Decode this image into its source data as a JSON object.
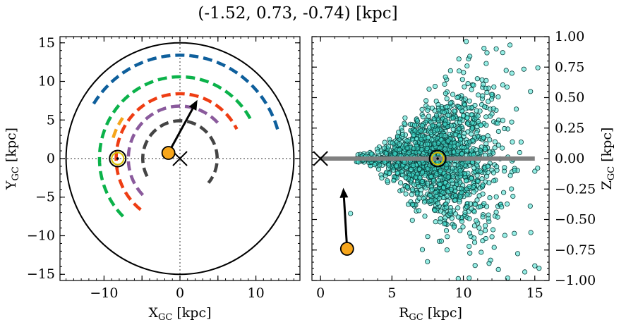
{
  "title": "(-1.52, 0.73, -0.74) [kpc]",
  "colors": {
    "ring_outer": "#000000",
    "arm_blue": "#0e5f9c",
    "arm_green": "#0bb24a",
    "arm_orange": "#f5a51c",
    "arm_red": "#ee3d13",
    "arm_purple": "#8a5a9c",
    "arm_gray": "#444444",
    "star_marker": "#f7a61b",
    "scatter_face": "#40e0d0",
    "plane_line": "#808080"
  },
  "chart_data": [
    {
      "type": "scatter",
      "name": "face-on",
      "xlabel_main": "X",
      "xlabel_sub": "GC",
      "xlabel_unit": " [kpc]",
      "ylabel_main": "Y",
      "ylabel_sub": "GC",
      "ylabel_unit": " [kpc]",
      "xlim": [
        -15.8,
        15.8
      ],
      "ylim": [
        -15.8,
        15.8
      ],
      "xticks": [
        -10,
        -5,
        0,
        5,
        10
      ],
      "xtick_labels": [
        "−10",
        "",
        "0",
        "",
        "10"
      ],
      "yticks": [
        -15,
        -10,
        -5,
        0,
        5,
        10,
        15
      ],
      "ytick_labels": [
        "−15",
        "−10",
        "−5",
        "0",
        "5",
        "10",
        "15"
      ],
      "outer_circle_radius": 15,
      "sun": {
        "x": -8.2,
        "y": 0
      },
      "galactic_center": {
        "x": 0,
        "y": 0
      },
      "star": {
        "x": -1.52,
        "y": 0.73
      },
      "velocity_arrow": {
        "from": [
          -1.52,
          0.73
        ],
        "to": [
          2.3,
          7.6
        ]
      },
      "arms": [
        {
          "color_key": "arm_blue",
          "radius": 13.4,
          "start_deg": 148,
          "end_deg": 16
        },
        {
          "color_key": "arm_green",
          "radius": 10.6,
          "start_deg": 225,
          "end_deg": 26
        },
        {
          "color_key": "arm_orange",
          "radius": 9.2,
          "start_deg": 163,
          "end_deg": 145
        },
        {
          "color_key": "arm_red",
          "radius": 8.4,
          "start_deg": 232,
          "end_deg": 27
        },
        {
          "color_key": "arm_purple",
          "radius": 6.8,
          "start_deg": 224,
          "end_deg": 39
        },
        {
          "color_key": "arm_gray",
          "radius": 4.9,
          "start_deg": 208,
          "end_deg": 320
        }
      ]
    },
    {
      "type": "scatter",
      "name": "edge-on",
      "xlabel_main": "R",
      "xlabel_sub": "GC",
      "xlabel_unit": " [kpc]",
      "ylabel_main": "Z",
      "ylabel_sub": "GC",
      "ylabel_unit": " [kpc]",
      "xlim": [
        -0.6,
        16
      ],
      "ylim": [
        -1.0,
        1.0
      ],
      "xticks": [
        0,
        5,
        10,
        15
      ],
      "xtick_labels": [
        "0",
        "5",
        "10",
        "15"
      ],
      "yticks": [
        -1.0,
        -0.75,
        -0.5,
        -0.25,
        0,
        0.25,
        0.5,
        0.75,
        1.0
      ],
      "ytick_labels": [
        "−1.00",
        "−0.75",
        "−0.50",
        "−0.25",
        "0.00",
        "0.25",
        "0.50",
        "0.75",
        "1.00"
      ],
      "plane_line": {
        "x": [
          0,
          15
        ],
        "z": 0
      },
      "sun": {
        "r": 8.2,
        "z": 0
      },
      "galactic_center": {
        "r": 0,
        "z": 0
      },
      "star": {
        "r": 1.86,
        "z": -0.74
      },
      "velocity_arrow": {
        "from": [
          1.86,
          -0.74
        ],
        "to": [
          1.6,
          -0.24
        ]
      },
      "cloud_points": 1500,
      "cloud_r_range": [
        2.5,
        15.5
      ],
      "cloud_center_r": 8.3,
      "outliers": [
        {
          "r": 10.2,
          "z": 0.96
        },
        {
          "r": 12.3,
          "z": 0.9
        },
        {
          "r": 9.1,
          "z": 0.72
        },
        {
          "r": 13.4,
          "z": 0.7
        },
        {
          "r": 11.6,
          "z": 0.78
        },
        {
          "r": 7.6,
          "z": 0.57
        },
        {
          "r": 14.7,
          "z": 0.55
        },
        {
          "r": 12.9,
          "z": -0.63
        },
        {
          "r": 13.8,
          "z": -0.78
        },
        {
          "r": 15.0,
          "z": -0.88
        },
        {
          "r": 11.8,
          "z": -0.86
        },
        {
          "r": 10.4,
          "z": -0.72
        },
        {
          "r": 7.5,
          "z": -0.64
        },
        {
          "r": 14.3,
          "z": -0.93
        },
        {
          "r": 15.3,
          "z": -0.9
        },
        {
          "r": 2.1,
          "z": -0.45
        },
        {
          "r": 13.1,
          "z": -0.98
        },
        {
          "r": 10.9,
          "z": -0.51
        }
      ]
    }
  ]
}
